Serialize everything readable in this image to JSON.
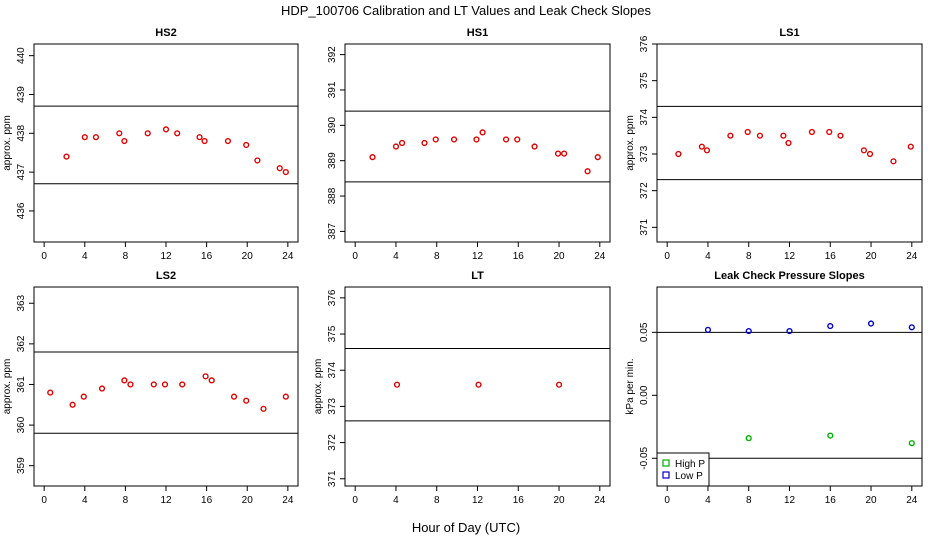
{
  "figure": {
    "title": "HDP_100706  Calibration and LT Values and Leak Check Slopes",
    "xlabel": "Hour of Day (UTC)"
  },
  "chart_data": [
    {
      "type": "scatter",
      "title": "HS2",
      "xlabel": "",
      "ylabel": "approx. ppm",
      "xlim": [
        -1,
        25
      ],
      "xticks": [
        "0",
        "4",
        "8",
        "12",
        "16",
        "20",
        "24"
      ],
      "ylim": [
        435.2,
        440.3
      ],
      "yticks": [
        "436",
        "437",
        "438",
        "439",
        "440"
      ],
      "hlines": [
        436.7,
        438.7
      ],
      "color": "#e00000",
      "series": [
        {
          "x": [
            2.2,
            4.0,
            5.1,
            7.4,
            7.9,
            10.2,
            12.0,
            13.1,
            15.3,
            15.8,
            18.1,
            19.9,
            21.0,
            23.2,
            23.8
          ],
          "y": [
            437.4,
            437.9,
            437.9,
            438.0,
            437.8,
            438.0,
            438.1,
            438.0,
            437.9,
            437.8,
            437.8,
            437.7,
            437.3,
            437.1,
            437.0
          ]
        }
      ]
    },
    {
      "type": "scatter",
      "title": "HS1",
      "xlabel": "",
      "ylabel": "",
      "xlim": [
        -1,
        25
      ],
      "xticks": [
        "0",
        "4",
        "8",
        "12",
        "16",
        "20",
        "24"
      ],
      "ylim": [
        386.7,
        392.3
      ],
      "yticks": [
        "387",
        "388",
        "389",
        "390",
        "391",
        "392"
      ],
      "hlines": [
        388.4,
        390.4
      ],
      "color": "#e00000",
      "series": [
        {
          "x": [
            1.7,
            4.0,
            4.6,
            6.8,
            7.9,
            9.7,
            11.9,
            12.5,
            14.8,
            15.9,
            17.6,
            19.9,
            20.5,
            22.8,
            23.8
          ],
          "y": [
            389.1,
            389.4,
            389.5,
            389.5,
            389.6,
            389.6,
            389.6,
            389.8,
            389.6,
            389.6,
            389.4,
            389.2,
            389.2,
            388.7,
            389.1
          ]
        }
      ]
    },
    {
      "type": "scatter",
      "title": "LS1",
      "xlabel": "",
      "ylabel": "approx. ppm",
      "xlim": [
        -1,
        25
      ],
      "xticks": [
        "0",
        "4",
        "8",
        "12",
        "16",
        "20",
        "24"
      ],
      "ylim": [
        370.6,
        376.0
      ],
      "yticks": [
        "371",
        "372",
        "373",
        "374",
        "375",
        "376"
      ],
      "hlines": [
        372.3,
        374.3
      ],
      "color": "#e00000",
      "series": [
        {
          "x": [
            1.1,
            3.4,
            3.9,
            6.2,
            7.9,
            9.1,
            11.4,
            11.9,
            14.2,
            15.9,
            17.0,
            19.3,
            19.9,
            22.2,
            23.9
          ],
          "y": [
            373.0,
            373.2,
            373.1,
            373.5,
            373.6,
            373.5,
            373.5,
            373.3,
            373.6,
            373.6,
            373.5,
            373.1,
            373.0,
            372.8,
            373.2
          ]
        }
      ]
    },
    {
      "type": "scatter",
      "title": "LS2",
      "xlabel": "",
      "ylabel": "approx. ppm",
      "xlim": [
        -1,
        25
      ],
      "xticks": [
        "0",
        "4",
        "8",
        "12",
        "16",
        "20",
        "24"
      ],
      "ylim": [
        358.5,
        363.4
      ],
      "yticks": [
        "359",
        "360",
        "361",
        "362",
        "363"
      ],
      "hlines": [
        359.8,
        361.8
      ],
      "color": "#e00000",
      "series": [
        {
          "x": [
            0.6,
            2.8,
            3.9,
            5.7,
            7.9,
            8.5,
            10.8,
            11.9,
            13.6,
            15.9,
            16.5,
            18.7,
            19.9,
            21.6,
            23.8
          ],
          "y": [
            360.8,
            360.5,
            360.7,
            360.9,
            361.1,
            361.0,
            361.0,
            361.0,
            361.0,
            361.2,
            361.1,
            360.7,
            360.6,
            360.4,
            360.7
          ]
        }
      ]
    },
    {
      "type": "scatter",
      "title": "LT",
      "xlabel": "",
      "ylabel": "approx. ppm",
      "xlim": [
        -1,
        25
      ],
      "xticks": [
        "0",
        "4",
        "8",
        "12",
        "16",
        "20",
        "24"
      ],
      "ylim": [
        370.8,
        376.3
      ],
      "yticks": [
        "371",
        "372",
        "373",
        "374",
        "375",
        "376"
      ],
      "hlines": [
        372.6,
        374.6
      ],
      "color": "#e00000",
      "series": [
        {
          "x": [
            4.1,
            12.1,
            20.0
          ],
          "y": [
            373.6,
            373.6,
            373.6
          ]
        }
      ]
    },
    {
      "type": "scatter",
      "title": "Leak Check Pressure Slopes",
      "xlabel": "",
      "ylabel": "kPa per min.",
      "xlim": [
        -1,
        25
      ],
      "xticks": [
        "0",
        "4",
        "8",
        "12",
        "16",
        "20",
        "24"
      ],
      "ylim": [
        -0.072,
        0.086
      ],
      "yticks": [
        "-0.05",
        "0.00",
        "0.05"
      ],
      "yticks_values": [
        -0.05,
        0.0,
        0.05
      ],
      "hlines": [
        0.05,
        -0.05
      ],
      "legend": {
        "position": "bottom-left",
        "entries": [
          "High P",
          "Low P"
        ]
      },
      "series": [
        {
          "name": "High P",
          "color": "#00b000",
          "x": [
            8.0,
            16.0,
            24.0
          ],
          "y": [
            -0.034,
            -0.032,
            -0.038
          ]
        },
        {
          "name": "Low P",
          "color": "#0000cc",
          "x": [
            4.0,
            8.0,
            12.0,
            16.0,
            20.0,
            24.0
          ],
          "y": [
            0.052,
            0.051,
            0.051,
            0.055,
            0.057,
            0.054
          ]
        }
      ]
    }
  ]
}
